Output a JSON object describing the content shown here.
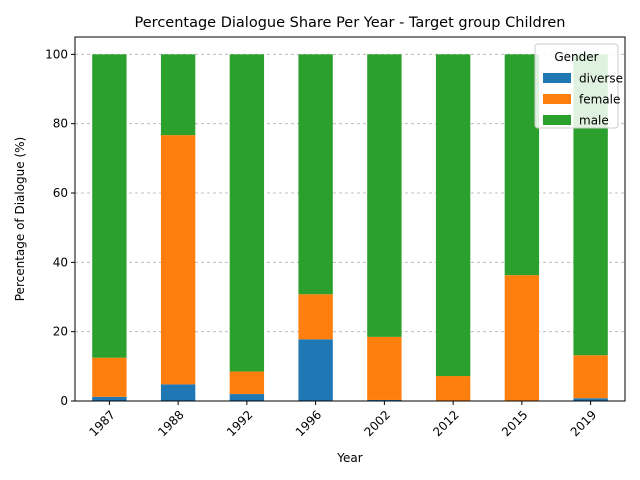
{
  "chart_data": {
    "type": "bar",
    "stacked": true,
    "title": "Percentage Dialogue Share Per Year - Target group Children",
    "xlabel": "Year",
    "ylabel": "Percentage of Dialogue (%)",
    "ylim": [
      0,
      105
    ],
    "yticks": [
      0,
      20,
      40,
      60,
      80,
      100
    ],
    "grid": "y-dashed",
    "legend_title": "Gender",
    "legend_position": "top-right",
    "categories": [
      "1987",
      "1988",
      "1992",
      "1996",
      "2002",
      "2012",
      "2015",
      "2019"
    ],
    "series": [
      {
        "name": "diverse",
        "color": "#1f77b4",
        "values": [
          1.2,
          4.8,
          2.0,
          17.8,
          0.3,
          0.0,
          0.0,
          0.8
        ]
      },
      {
        "name": "female",
        "color": "#ff7f0e",
        "values": [
          11.3,
          71.9,
          6.5,
          13.0,
          18.2,
          7.2,
          36.3,
          12.4
        ]
      },
      {
        "name": "male",
        "color": "#2ca02c",
        "values": [
          87.5,
          23.3,
          91.5,
          69.2,
          81.5,
          92.8,
          63.7,
          86.8
        ]
      }
    ]
  }
}
